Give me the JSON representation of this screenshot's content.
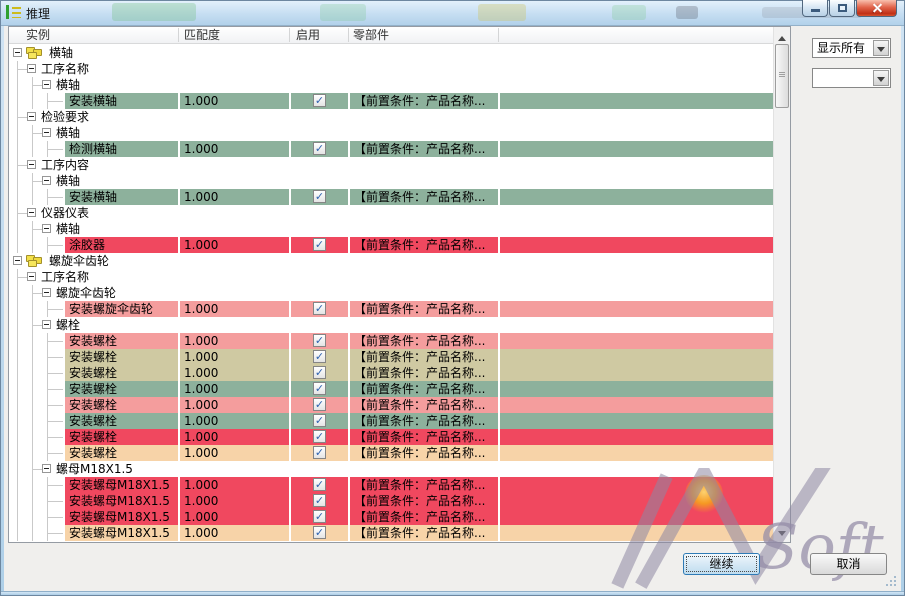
{
  "window": {
    "title": "推理"
  },
  "filters": {
    "primary": {
      "value": "显示所有"
    },
    "secondary": {
      "value": ""
    }
  },
  "buttons": {
    "continue": "继续",
    "cancel": "取消"
  },
  "watermark": {
    "text": "Soft"
  },
  "colors": {
    "green": "#8DB19C",
    "red": "#F0485F",
    "salmon": "#F49D9D",
    "khaki": "#CFC9A2",
    "peach": "#F7D3A8"
  },
  "table": {
    "columns": [
      "实例",
      "匹配度",
      "启用",
      "零部件"
    ],
    "parts_text": "【前置条件：产品名称...",
    "check_glyph": "✓",
    "rows": [
      {
        "t": "root",
        "label": "横轴"
      },
      {
        "t": "group",
        "d": 1,
        "label": "工序名称"
      },
      {
        "t": "group",
        "d": 2,
        "label": "横轴"
      },
      {
        "t": "leaf",
        "label": "安装横轴",
        "score": "1.000",
        "checked": true,
        "color": "green"
      },
      {
        "t": "group",
        "d": 1,
        "label": "检验要求"
      },
      {
        "t": "group",
        "d": 2,
        "label": "横轴"
      },
      {
        "t": "leaf",
        "label": "检测横轴",
        "score": "1.000",
        "checked": true,
        "color": "green"
      },
      {
        "t": "group",
        "d": 1,
        "label": "工序内容"
      },
      {
        "t": "group",
        "d": 2,
        "label": "横轴"
      },
      {
        "t": "leaf",
        "label": "安装横轴",
        "score": "1.000",
        "checked": true,
        "color": "green"
      },
      {
        "t": "group",
        "d": 1,
        "label": "仪器仪表"
      },
      {
        "t": "group",
        "d": 2,
        "label": "横轴"
      },
      {
        "t": "leaf",
        "label": "涂胶器",
        "score": "1.000",
        "checked": true,
        "color": "red"
      },
      {
        "t": "root",
        "label": "螺旋伞齿轮"
      },
      {
        "t": "group",
        "d": 1,
        "label": "工序名称"
      },
      {
        "t": "group",
        "d": 2,
        "label": "螺旋伞齿轮"
      },
      {
        "t": "leaf",
        "label": "安装螺旋伞齿轮",
        "score": "1.000",
        "checked": true,
        "color": "salmon"
      },
      {
        "t": "group",
        "d": 2,
        "label": "螺栓"
      },
      {
        "t": "leaf",
        "label": "安装螺栓",
        "score": "1.000",
        "checked": true,
        "color": "salmon"
      },
      {
        "t": "leaf",
        "label": "安装螺栓",
        "score": "1.000",
        "checked": true,
        "color": "khaki"
      },
      {
        "t": "leaf",
        "label": "安装螺栓",
        "score": "1.000",
        "checked": true,
        "color": "khaki"
      },
      {
        "t": "leaf",
        "label": "安装螺栓",
        "score": "1.000",
        "checked": true,
        "color": "green"
      },
      {
        "t": "leaf",
        "label": "安装螺栓",
        "score": "1.000",
        "checked": true,
        "color": "salmon"
      },
      {
        "t": "leaf",
        "label": "安装螺栓",
        "score": "1.000",
        "checked": true,
        "color": "green"
      },
      {
        "t": "leaf",
        "label": "安装螺栓",
        "score": "1.000",
        "checked": true,
        "color": "red"
      },
      {
        "t": "leaf",
        "label": "安装螺栓",
        "score": "1.000",
        "checked": true,
        "color": "peach"
      },
      {
        "t": "group",
        "d": 2,
        "label": "螺母M18X1.5"
      },
      {
        "t": "leaf",
        "label": "安装螺母M18X1.5",
        "score": "1.000",
        "checked": true,
        "color": "red"
      },
      {
        "t": "leaf",
        "label": "安装螺母M18X1.5",
        "score": "1.000",
        "checked": true,
        "color": "red"
      },
      {
        "t": "leaf",
        "label": "安装螺母M18X1.5",
        "score": "1.000",
        "checked": true,
        "color": "red"
      },
      {
        "t": "leaf",
        "label": "安装螺母M18X1.5",
        "score": "1.000",
        "checked": true,
        "color": "peach"
      }
    ]
  }
}
